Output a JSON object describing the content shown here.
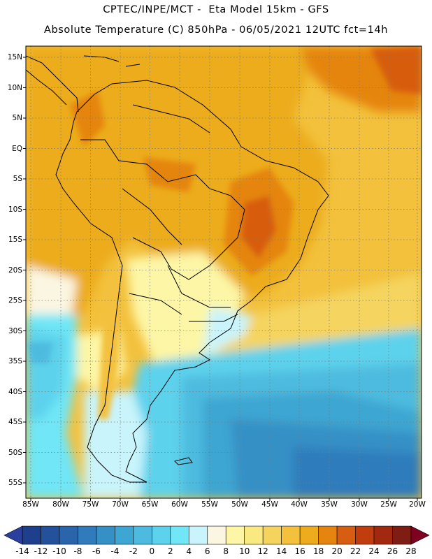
{
  "title_line1": "CPTEC/INPE/MCT -  Eta Model 15km - GFS",
  "title_line2": "Absolute Temperature (C) 850hPa - 06/05/2021 12UTC fct=14h",
  "lat_labels": [
    "15N",
    "10N",
    "5N",
    "EQ",
    "5S",
    "10S",
    "15S",
    "20S",
    "25S",
    "30S",
    "35S",
    "40S",
    "45S",
    "50S",
    "55S"
  ],
  "lon_labels": [
    "85W",
    "80W",
    "75W",
    "70W",
    "65W",
    "60W",
    "55W",
    "50W",
    "45W",
    "40W",
    "35W",
    "30W",
    "25W",
    "20W"
  ],
  "colorbar": {
    "labels": [
      "-14",
      "-12",
      "-10",
      "-8",
      "-6",
      "-4",
      "-2",
      "0",
      "2",
      "4",
      "6",
      "8",
      "10",
      "12",
      "14",
      "16",
      "18",
      "20",
      "22",
      "24",
      "26",
      "28"
    ],
    "colors": [
      "#1e3f8c",
      "#23519c",
      "#2a65ab",
      "#2f7bbb",
      "#3590c6",
      "#3ea6d2",
      "#4dbbdf",
      "#5dd2ec",
      "#70e6f6",
      "#c9f4fb",
      "#fbf6e2",
      "#fdf6a6",
      "#fae980",
      "#f5d45e",
      "#f3c13c",
      "#ecac1e",
      "#e5850f",
      "#d75d10",
      "#c23d0e",
      "#a22810",
      "#7e1d13"
    ],
    "under_color": "#2b3f9e",
    "over_color": "#800020"
  }
}
